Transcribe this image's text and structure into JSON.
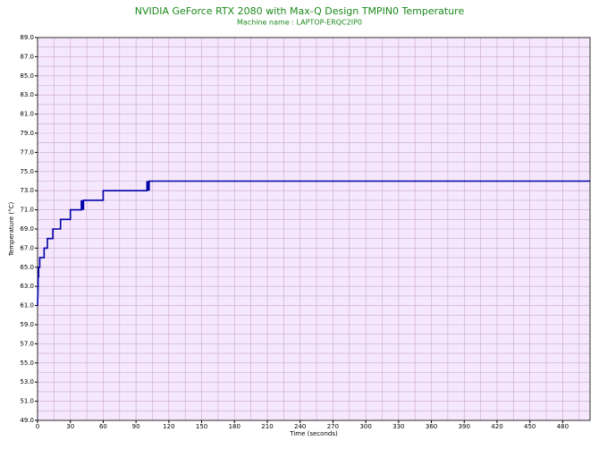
{
  "chart_data": {
    "type": "line",
    "title": "NVIDIA GeForce RTX 2080 with Max-Q Design TMPIN0 Temperature",
    "subtitle": "Machine name : LAPTOP-ERQC2IP0",
    "x_label": "Time (seconds)",
    "y_label": "Temperature (°C)",
    "x": [
      0,
      0.5,
      0.5,
      1,
      1,
      2,
      2,
      6,
      6,
      9,
      9,
      14,
      14,
      21,
      21,
      30,
      30,
      40,
      40,
      41,
      41,
      42,
      42,
      60,
      60,
      100,
      100,
      101,
      101,
      102,
      102,
      505
    ],
    "series": [
      {
        "name": "TMPIN0",
        "color": "#0000a8",
        "values": [
          61,
          63,
          64,
          64,
          65,
          65,
          66,
          66,
          67,
          67,
          68,
          68,
          69,
          69,
          70,
          70,
          71,
          71,
          72,
          71,
          72,
          71,
          72,
          72,
          73,
          73,
          74,
          73,
          74,
          73,
          74,
          74
        ]
      }
    ],
    "xlim": [
      0,
      505
    ],
    "xticks": [
      0,
      30,
      60,
      90,
      120,
      150,
      180,
      210,
      240,
      270,
      300,
      330,
      360,
      390,
      420,
      450,
      480
    ],
    "ylim": [
      49,
      89
    ],
    "yticks": [
      {
        "value": 49,
        "label": "49.0"
      },
      {
        "value": 51,
        "label": "51.0"
      },
      {
        "value": 53,
        "label": "53.0"
      },
      {
        "value": 55,
        "label": "55.0"
      },
      {
        "value": 57,
        "label": "57.0"
      },
      {
        "value": 59,
        "label": "59.0"
      },
      {
        "value": 61,
        "label": "61.0"
      },
      {
        "value": 63,
        "label": "63.0"
      },
      {
        "value": 65,
        "label": "65.0"
      },
      {
        "value": 67,
        "label": "67.0"
      },
      {
        "value": 69,
        "label": "69.0"
      },
      {
        "value": 71,
        "label": "71.0"
      },
      {
        "value": 73,
        "label": "73.0"
      },
      {
        "value": 75,
        "label": "75.0"
      },
      {
        "value": 77,
        "label": "77.0"
      },
      {
        "value": 79,
        "label": "79.0"
      },
      {
        "value": 81,
        "label": "81.0"
      },
      {
        "value": 83,
        "label": "83.0"
      },
      {
        "value": 85,
        "label": "85.0"
      },
      {
        "value": 87,
        "label": "87.0"
      },
      {
        "value": 89,
        "label": "89.0"
      }
    ],
    "grid": true,
    "plot_background": "#f6e8fc",
    "grid_color": "#c9a6d2"
  }
}
